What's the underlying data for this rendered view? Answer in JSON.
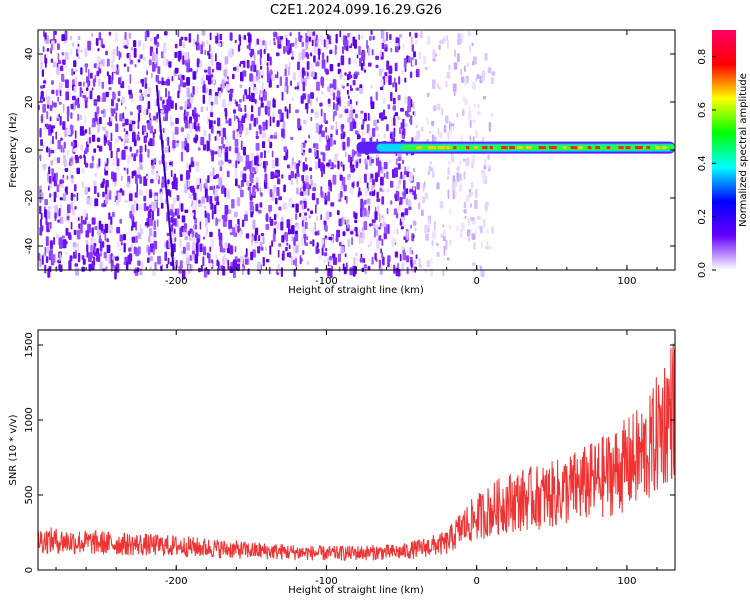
{
  "figure_title": "C2E1.2024.099.16.29.G26",
  "chart_data": [
    {
      "type": "heatmap",
      "xlabel": "Height of straight line (km)",
      "ylabel": "Frequency (Hz)",
      "xlim": [
        -292,
        132
      ],
      "ylim": [
        -50,
        50
      ],
      "xticks": [
        -200,
        -100,
        0,
        100
      ],
      "xtick_labels": [
        "-200",
        "-100",
        "0",
        "100"
      ],
      "yticks": [
        -40,
        -20,
        0,
        20,
        40
      ],
      "ytick_labels": [
        "-40",
        "-20",
        "0",
        "20",
        "40"
      ],
      "colorbar": {
        "label": "Normalized spectral amplitude",
        "range": [
          0,
          0.9
        ],
        "ticks": [
          0,
          0.2,
          0.4,
          0.6,
          0.8
        ],
        "tick_labels": [
          "0.0",
          "0.2",
          "0.4",
          "0.6",
          "0.8"
        ],
        "colormap": [
          "#ffffff",
          "#6600ff",
          "#0000ff",
          "#00ffff",
          "#00ff00",
          "#ffff00",
          "#ff0000",
          "#ff0066"
        ]
      },
      "features": {
        "noise_region_x": [
          -292,
          -10
        ],
        "carrier_line": {
          "x": [
            -80,
            132
          ],
          "frequency_hz": 1,
          "amplitude": 0.8
        },
        "spike_x": -207
      },
      "grid": false
    },
    {
      "type": "line",
      "xlabel": "Height of straight line (km)",
      "ylabel": "SNR (10 * v/v)",
      "xlim": [
        -292,
        132
      ],
      "ylim": [
        0,
        1600
      ],
      "xticks": [
        -200,
        -100,
        0,
        100
      ],
      "xtick_labels": [
        "-200",
        "-100",
        "0",
        "100"
      ],
      "yticks": [
        0,
        500,
        1000,
        1500
      ],
      "ytick_labels": [
        "0",
        "500",
        "1000",
        "1500"
      ],
      "series": [
        {
          "color": "#f03232",
          "x": [
            -292,
            -250,
            -200,
            -150,
            -100,
            -50,
            -20,
            -10,
            0,
            20,
            50,
            80,
            100,
            115,
            125,
            132
          ],
          "y": [
            200,
            180,
            160,
            130,
            110,
            120,
            180,
            280,
            350,
            450,
            500,
            600,
            700,
            800,
            1000,
            1100
          ]
        }
      ],
      "grid": false
    }
  ]
}
